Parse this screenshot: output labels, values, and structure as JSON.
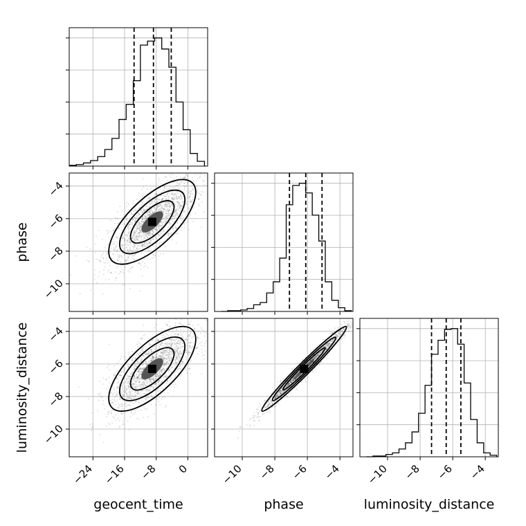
{
  "chart_data": {
    "type": "corner",
    "parameters": [
      "geocent_time",
      "phase",
      "luminosity_distance"
    ],
    "ranges": {
      "geocent_time": [
        -30,
        5
      ],
      "phase": [
        -11.7,
        -3.2
      ],
      "luminosity_distance": [
        -11.7,
        -3.2
      ]
    },
    "ticks": {
      "geocent_time": [
        "-24",
        "-16",
        "-8",
        "0"
      ],
      "phase": [
        "-10",
        "-8",
        "-6",
        "-4"
      ],
      "luminosity_distance": [
        "-10",
        "-8",
        "-6",
        "-4"
      ]
    },
    "tick_values": {
      "geocent_time": [
        -24,
        -16,
        -8,
        0
      ],
      "phase": [
        -10,
        -8,
        -6,
        -4
      ],
      "luminosity_distance": [
        -10,
        -8,
        -6,
        -4
      ]
    },
    "grid": true,
    "marginals": [
      {
        "parameter": "geocent_time",
        "bin_edges": [
          -29.9,
          -28.2,
          -26.4,
          -24.6,
          -22.8,
          -21.0,
          -19.2,
          -17.4,
          -15.6,
          -13.8,
          -12.0,
          -10.2,
          -8.4,
          -6.6,
          -4.8,
          -3.0,
          -1.2,
          0.6,
          2.4,
          4.2
        ],
        "counts": [
          1,
          2,
          4,
          7,
          12,
          21,
          35,
          59,
          78,
          108,
          153,
          158,
          162,
          148,
          125,
          81,
          46,
          16,
          6
        ],
        "quantiles": [
          -13.6,
          -8.7,
          -4.2
        ]
      },
      {
        "parameter": "phase",
        "bin_edges": [
          -11.3,
          -10.9,
          -10.5,
          -10.1,
          -9.7,
          -9.3,
          -8.9,
          -8.5,
          -8.1,
          -7.7,
          -7.3,
          -6.9,
          -6.5,
          -6.1,
          -5.7,
          -5.3,
          -4.9,
          -4.5,
          -4.1,
          -3.7,
          -3.3
        ],
        "counts": [
          0,
          1,
          1,
          2,
          4,
          9,
          12,
          25,
          40,
          72,
          144,
          170,
          173,
          160,
          130,
          95,
          40,
          15,
          5,
          1
        ],
        "quantiles": [
          -7.1,
          -6.1,
          -5.1
        ]
      },
      {
        "parameter": "luminosity_distance",
        "bin_edges": [
          -11.3,
          -10.9,
          -10.5,
          -10.1,
          -9.7,
          -9.3,
          -8.9,
          -8.5,
          -8.1,
          -7.7,
          -7.3,
          -6.9,
          -6.5,
          -6.1,
          -5.7,
          -5.3,
          -4.9,
          -4.5,
          -4.1,
          -3.7,
          -3.3
        ],
        "counts": [
          0,
          1,
          1,
          3,
          5,
          10,
          18,
          32,
          56,
          92,
          132,
          150,
          164,
          165,
          145,
          95,
          48,
          18,
          5,
          2
        ],
        "quantiles": [
          -7.3,
          -6.4,
          -5.5
        ]
      }
    ],
    "joints": [
      {
        "x": "geocent_time",
        "y": "phase",
        "center": [
          -9,
          -6.2
        ],
        "spread": [
          5.5,
          1.3
        ],
        "rho": 0.7
      },
      {
        "x": "geocent_time",
        "y": "luminosity_distance",
        "center": [
          -9,
          -6.3
        ],
        "spread": [
          5.5,
          1.3
        ],
        "rho": 0.7
      },
      {
        "x": "phase",
        "y": "luminosity_distance",
        "center": [
          -6.2,
          -6.3
        ],
        "spread": [
          1.3,
          1.3
        ],
        "rho": 0.98
      }
    ]
  }
}
